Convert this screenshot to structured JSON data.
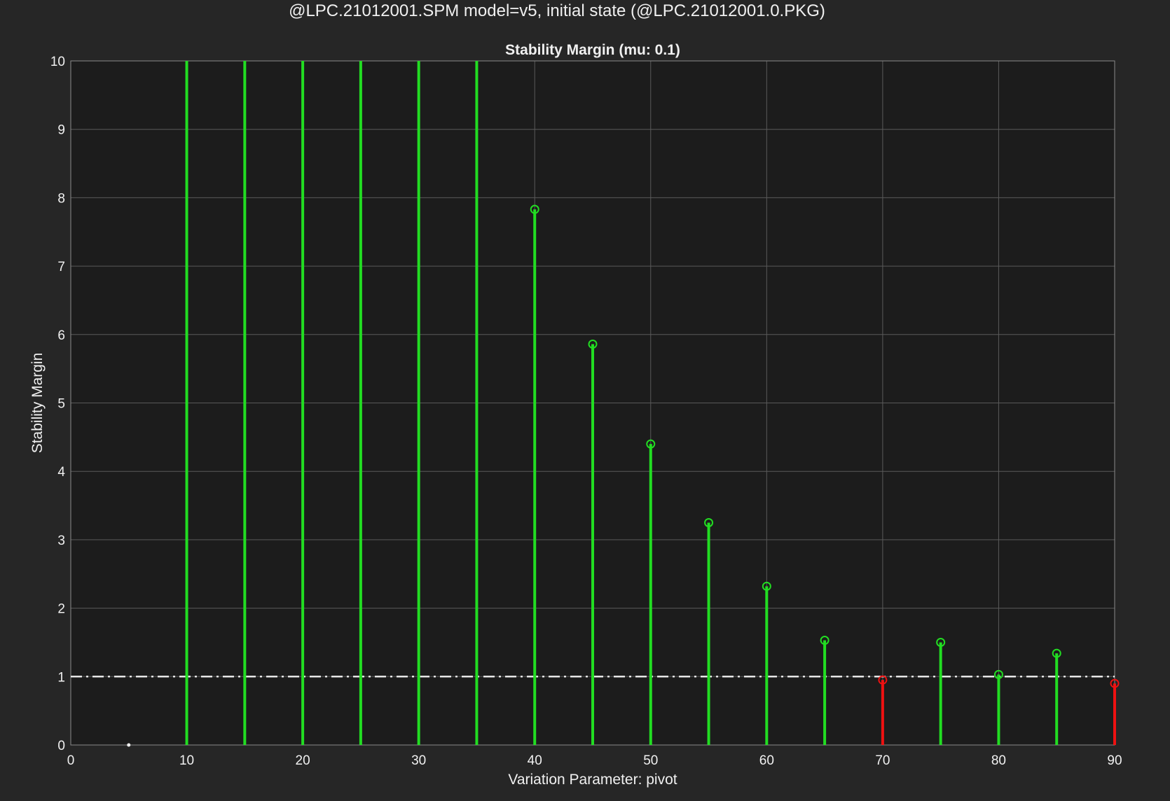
{
  "figure_title": "@LPC.21012001.SPM model=v5, initial state (@LPC.21012001.0.PKG)",
  "colors": {
    "figure_bg": "#262626",
    "axes_bg": "#1c1c1c",
    "grid": "#5a5a5a",
    "axis_text": "#f0f0f0",
    "stable": "#22dd22",
    "unstable": "#ee1111",
    "threshold": "#e6e6e6"
  },
  "chart_data": {
    "type": "stem",
    "title": "Stability Margin (mu: 0.1)",
    "xlabel": "Variation Parameter: pivot",
    "ylabel": "Stability Margin",
    "xlim": [
      0,
      90
    ],
    "ylim": [
      0,
      10
    ],
    "xticks": [
      0,
      10,
      20,
      30,
      40,
      50,
      60,
      70,
      80,
      90
    ],
    "yticks": [
      0,
      1,
      2,
      3,
      4,
      5,
      6,
      7,
      8,
      9,
      10
    ],
    "grid": true,
    "threshold": 1,
    "points": [
      {
        "x": 5,
        "y": 0
      },
      {
        "x": 10,
        "y": 10,
        "clipped": true
      },
      {
        "x": 15,
        "y": 10,
        "clipped": true
      },
      {
        "x": 20,
        "y": 10,
        "clipped": true
      },
      {
        "x": 25,
        "y": 10,
        "clipped": true
      },
      {
        "x": 30,
        "y": 10,
        "clipped": true
      },
      {
        "x": 35,
        "y": 10,
        "clipped": true
      },
      {
        "x": 40,
        "y": 7.83
      },
      {
        "x": 45,
        "y": 5.86
      },
      {
        "x": 50,
        "y": 4.4
      },
      {
        "x": 55,
        "y": 3.25
      },
      {
        "x": 60,
        "y": 2.32
      },
      {
        "x": 65,
        "y": 1.53
      },
      {
        "x": 70,
        "y": 0.95
      },
      {
        "x": 75,
        "y": 1.5
      },
      {
        "x": 80,
        "y": 1.03
      },
      {
        "x": 85,
        "y": 1.34
      },
      {
        "x": 90,
        "y": 0.9
      }
    ]
  }
}
